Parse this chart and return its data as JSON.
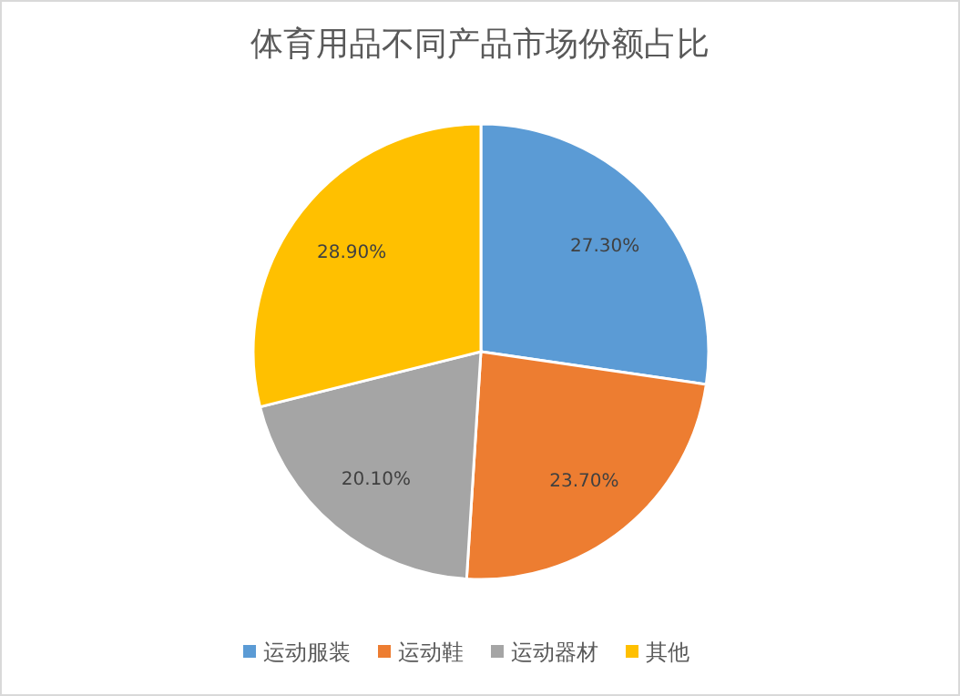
{
  "chart_data": {
    "type": "pie",
    "title": "体育用品不同产品市场份额占比",
    "categories": [
      "运动服装",
      "运动鞋",
      "运动器材",
      "其他"
    ],
    "values": [
      27.3,
      23.7,
      20.1,
      28.9
    ],
    "value_labels": [
      "27.30%",
      "23.70%",
      "20.10%",
      "28.90%"
    ],
    "colors": [
      "#5b9bd5",
      "#ed7d31",
      "#a5a5a5",
      "#ffc000"
    ],
    "legend": "bottom"
  }
}
